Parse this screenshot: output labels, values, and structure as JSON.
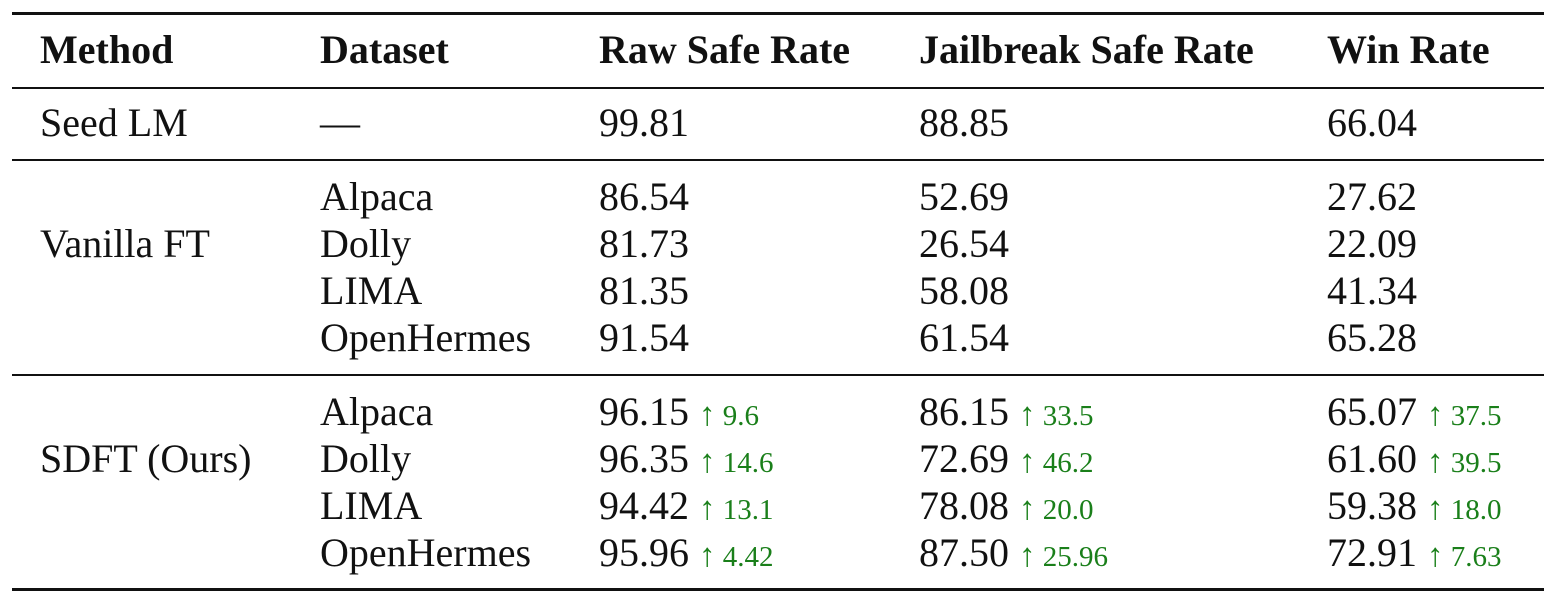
{
  "headers": {
    "method": "Method",
    "dataset": "Dataset",
    "raw": "Raw Safe Rate",
    "jailbreak": "Jailbreak Safe Rate",
    "win": "Win Rate"
  },
  "seed": {
    "method": "Seed LM",
    "dataset": "—",
    "raw": "99.81",
    "jailbreak": "88.85",
    "win": "66.04"
  },
  "vanilla": {
    "method": "Vanilla FT",
    "rows": [
      {
        "dataset": "Alpaca",
        "raw": "86.54",
        "jailbreak": "52.69",
        "win": "27.62"
      },
      {
        "dataset": "Dolly",
        "raw": "81.73",
        "jailbreak": "26.54",
        "win": "22.09"
      },
      {
        "dataset": "LIMA",
        "raw": "81.35",
        "jailbreak": "58.08",
        "win": "41.34"
      },
      {
        "dataset": "OpenHermes",
        "raw": "91.54",
        "jailbreak": "61.54",
        "win": "65.28"
      }
    ]
  },
  "sdft": {
    "method": "SDFT (Ours)",
    "arrow": "↑",
    "rows": [
      {
        "dataset": "Alpaca",
        "raw": "96.15",
        "raw_delta": "9.6",
        "jailbreak": "86.15",
        "jailbreak_delta": "33.5",
        "win": "65.07",
        "win_delta": "37.5"
      },
      {
        "dataset": "Dolly",
        "raw": "96.35",
        "raw_delta": "14.6",
        "jailbreak": "72.69",
        "jailbreak_delta": "46.2",
        "win": "61.60",
        "win_delta": "39.5"
      },
      {
        "dataset": "LIMA",
        "raw": "94.42",
        "raw_delta": "13.1",
        "jailbreak": "78.08",
        "jailbreak_delta": "20.0",
        "win": "59.38",
        "win_delta": "18.0"
      },
      {
        "dataset": "OpenHermes",
        "raw": "95.96",
        "raw_delta": "4.42",
        "jailbreak": "87.50",
        "jailbreak_delta": "25.96",
        "win": "72.91",
        "win_delta": "7.63"
      }
    ]
  },
  "colors": {
    "improvement": "#1a7f1a",
    "text": "#111111"
  }
}
